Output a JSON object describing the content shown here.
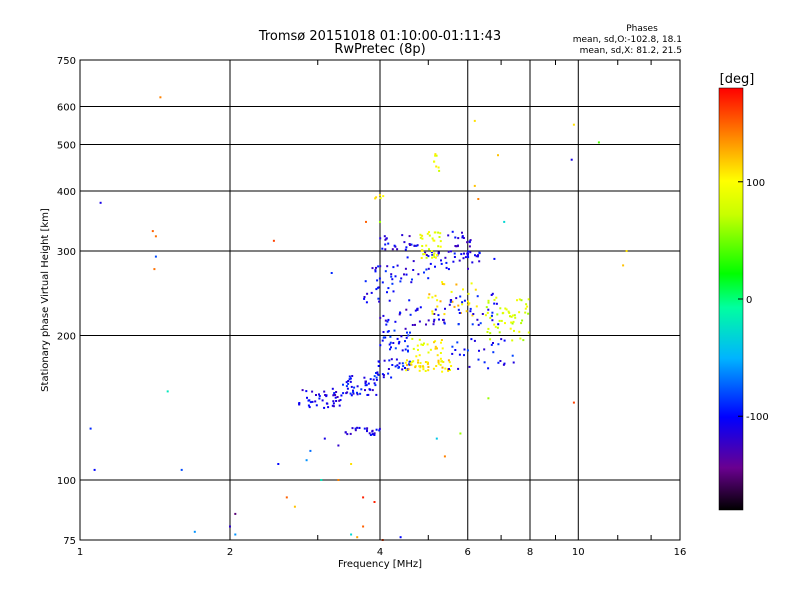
{
  "chart_data": {
    "type": "scatter",
    "title": "Tromsø 20151018 01:10:00-01:11:43",
    "subtitle": "RwPretec (8p)",
    "xlabel": "Frequency [MHz]",
    "ylabel": "Stationary phase Virtual Height [km]",
    "x_scale": "log",
    "y_scale": "log",
    "xlim": [
      1,
      16
    ],
    "ylim": [
      75,
      750
    ],
    "x_ticks": [
      1,
      2,
      4,
      6,
      8,
      10,
      16
    ],
    "y_ticks": [
      75,
      100,
      200,
      300,
      400,
      500,
      600,
      750
    ],
    "grid": true,
    "phases_info": {
      "title": "Phases",
      "line_o": "mean, sd,O:-102.8, 18.1",
      "line_x": "mean, sd,X:  81.2, 21.5"
    },
    "colorbar": {
      "label": "[deg]",
      "range": [
        -180,
        180
      ],
      "ticks": [
        100,
        0,
        -100
      ],
      "colormap": "rainbow"
    },
    "clusters": [
      {
        "f": [
          2.75,
          3.35
        ],
        "h": [
          140,
          155
        ],
        "phase": -110,
        "n": 45
      },
      {
        "f": [
          3.3,
          3.95
        ],
        "h": [
          150,
          165
        ],
        "phase": -105,
        "n": 45
      },
      {
        "f": [
          3.9,
          4.6
        ],
        "h": [
          163,
          180
        ],
        "phase": -100,
        "n": 35
      },
      {
        "f": [
          4.5,
          5.6
        ],
        "h": [
          168,
          178
        ],
        "phase": 110,
        "n": 40
      },
      {
        "f": [
          3.4,
          4.0
        ],
        "h": [
          124,
          129
        ],
        "phase": -110,
        "n": 25
      },
      {
        "f": [
          4.0,
          4.6
        ],
        "h": [
          185,
          205
        ],
        "phase": -100,
        "n": 30
      },
      {
        "f": [
          4.6,
          5.4
        ],
        "h": [
          175,
          200
        ],
        "phase": 100,
        "n": 30
      },
      {
        "f": [
          5.5,
          7.8
        ],
        "h": [
          170,
          200
        ],
        "phase": -100,
        "n": 30
      },
      {
        "f": [
          6.5,
          8.0
        ],
        "h": [
          195,
          240
        ],
        "phase": 80,
        "n": 55
      },
      {
        "f": [
          4.0,
          5.5
        ],
        "h": [
          205,
          230
        ],
        "phase": -110,
        "n": 35
      },
      {
        "f": [
          5.0,
          6.3
        ],
        "h": [
          220,
          260
        ],
        "phase": 110,
        "n": 30
      },
      {
        "f": [
          5.5,
          7.0
        ],
        "h": [
          210,
          245
        ],
        "phase": -100,
        "n": 30
      },
      {
        "f": [
          3.8,
          5.0
        ],
        "h": [
          260,
          280
        ],
        "phase": -105,
        "n": 25
      },
      {
        "f": [
          4.5,
          6.8
        ],
        "h": [
          275,
          300
        ],
        "phase": -110,
        "n": 40
      },
      {
        "f": [
          4.0,
          4.8
        ],
        "h": [
          300,
          325
        ],
        "phase": -110,
        "n": 25
      },
      {
        "f": [
          4.8,
          5.3
        ],
        "h": [
          290,
          330
        ],
        "phase": 90,
        "n": 35
      },
      {
        "f": [
          5.4,
          6.1
        ],
        "h": [
          295,
          330
        ],
        "phase": -110,
        "n": 25
      },
      {
        "f": [
          3.7,
          4.7
        ],
        "h": [
          230,
          260
        ],
        "phase": -100,
        "n": 20
      },
      {
        "f": [
          5.0,
          5.3
        ],
        "h": [
          440,
          480
        ],
        "phase": 90,
        "n": 8
      },
      {
        "f": [
          3.9,
          4.1
        ],
        "h": [
          385,
          395
        ],
        "phase": 100,
        "n": 5
      }
    ],
    "scattered_points": [
      [
        1.1,
        378,
        -110
      ],
      [
        1.05,
        128,
        -90
      ],
      [
        1.07,
        105,
        -100
      ],
      [
        1.4,
        330,
        150
      ],
      [
        1.42,
        322,
        145
      ],
      [
        1.42,
        292,
        -80
      ],
      [
        1.41,
        275,
        145
      ],
      [
        1.45,
        627,
        140
      ],
      [
        1.5,
        153,
        -20
      ],
      [
        1.6,
        105,
        -80
      ],
      [
        1.7,
        78,
        -60
      ],
      [
        2.0,
        80,
        -120
      ],
      [
        2.05,
        85,
        -150
      ],
      [
        2.05,
        77,
        -60
      ],
      [
        2.45,
        315,
        160
      ],
      [
        2.6,
        92,
        150
      ],
      [
        2.7,
        88,
        120
      ],
      [
        2.9,
        115,
        -70
      ],
      [
        2.85,
        110,
        -60
      ],
      [
        2.5,
        108,
        -100
      ],
      [
        3.1,
        122,
        -110
      ],
      [
        3.3,
        118,
        -120
      ],
      [
        3.5,
        108,
        110
      ],
      [
        3.75,
        345,
        150
      ],
      [
        3.3,
        100,
        140
      ],
      [
        3.7,
        80,
        150
      ],
      [
        3.5,
        77,
        -30
      ],
      [
        3.6,
        76,
        130
      ],
      [
        3.9,
        90,
        170
      ],
      [
        4.05,
        75,
        160
      ],
      [
        4.4,
        76,
        -100
      ],
      [
        6.2,
        560,
        110
      ],
      [
        6.2,
        410,
        120
      ],
      [
        6.9,
        475,
        120
      ],
      [
        7.1,
        345,
        -30
      ],
      [
        9.8,
        550,
        110
      ],
      [
        9.7,
        465,
        -110
      ],
      [
        11,
        505,
        40
      ],
      [
        12.5,
        300,
        110
      ],
      [
        12.3,
        280,
        120
      ],
      [
        9.8,
        145,
        160
      ],
      [
        5.2,
        122,
        -40
      ],
      [
        5.8,
        125,
        60
      ],
      [
        6.3,
        385,
        140
      ],
      [
        3.2,
        270,
        -90
      ],
      [
        4.0,
        345,
        60
      ],
      [
        6.6,
        148,
        60
      ],
      [
        5.4,
        112,
        140
      ],
      [
        3.05,
        100,
        -20
      ],
      [
        3.7,
        92,
        170
      ]
    ]
  }
}
